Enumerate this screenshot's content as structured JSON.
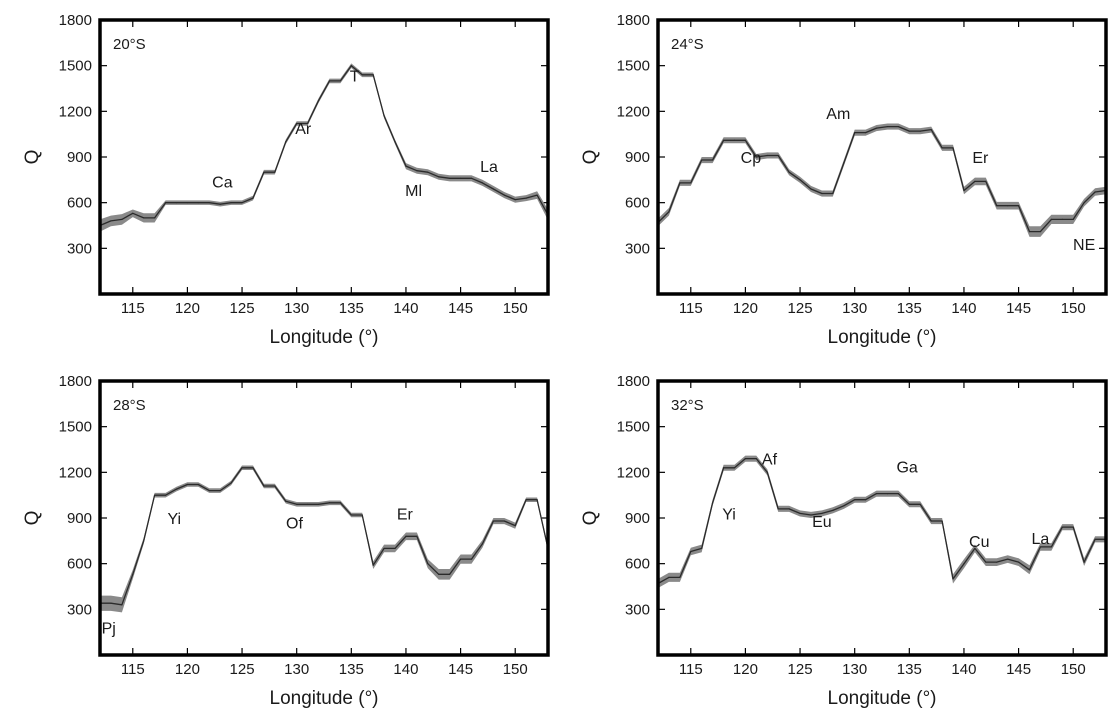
{
  "chart_data": [
    {
      "type": "line",
      "title": "20°S",
      "xlabel": "Longitude (°)",
      "ylabel": "Q",
      "xlim": [
        112,
        153
      ],
      "ylim": [
        0,
        1800
      ],
      "xticks": [
        115,
        120,
        125,
        130,
        135,
        140,
        145,
        150
      ],
      "yticks": [
        300,
        600,
        900,
        1200,
        1500,
        1800
      ],
      "series": [
        {
          "x": [
            112,
            113,
            114,
            115,
            116,
            117,
            118,
            119,
            120,
            121,
            122,
            123,
            124,
            125,
            126,
            127,
            128,
            129,
            130,
            131,
            132,
            133,
            134,
            135,
            136,
            137,
            138,
            139,
            140,
            141,
            142,
            143,
            144,
            145,
            146,
            147,
            148,
            149,
            150,
            151,
            152,
            153
          ],
          "y": [
            450,
            480,
            490,
            530,
            500,
            500,
            600,
            600,
            600,
            600,
            600,
            590,
            600,
            600,
            630,
            800,
            800,
            1000,
            1120,
            1120,
            1270,
            1400,
            1400,
            1500,
            1440,
            1440,
            1170,
            1000,
            840,
            810,
            800,
            770,
            760,
            760,
            760,
            730,
            690,
            650,
            620,
            630,
            650,
            520
          ],
          "uncertainty": [
            40,
            35,
            35,
            25,
            30,
            30,
            15,
            15,
            15,
            15,
            15,
            15,
            15,
            15,
            15,
            15,
            15,
            15,
            15,
            15,
            15,
            15,
            15,
            15,
            15,
            15,
            15,
            15,
            20,
            20,
            20,
            20,
            20,
            20,
            20,
            20,
            20,
            20,
            20,
            20,
            25,
            35
          ]
        }
      ],
      "annotations": [
        {
          "text": "Ca",
          "x": 123.2,
          "y": 700
        },
        {
          "text": "Ar",
          "x": 130.6,
          "y": 1050
        },
        {
          "text": "T",
          "x": 135.3,
          "y": 1395
        },
        {
          "text": "Ml",
          "x": 140.7,
          "y": 645
        },
        {
          "text": "La",
          "x": 147.6,
          "y": 800
        }
      ]
    },
    {
      "type": "line",
      "title": "24°S",
      "xlabel": "Longitude (°)",
      "ylabel": "Q",
      "xlim": [
        112,
        153
      ],
      "ylim": [
        0,
        1800
      ],
      "xticks": [
        115,
        120,
        125,
        130,
        135,
        140,
        145,
        150
      ],
      "yticks": [
        300,
        600,
        900,
        1200,
        1500,
        1800
      ],
      "series": [
        {
          "x": [
            112,
            113,
            114,
            115,
            116,
            117,
            118,
            119,
            120,
            121,
            122,
            123,
            124,
            125,
            126,
            127,
            128,
            129,
            130,
            131,
            132,
            133,
            134,
            135,
            136,
            137,
            138,
            139,
            140,
            141,
            142,
            143,
            144,
            145,
            146,
            147,
            148,
            149,
            150,
            151,
            152,
            153
          ],
          "y": [
            470,
            540,
            730,
            730,
            880,
            880,
            1010,
            1010,
            1010,
            900,
            910,
            910,
            800,
            750,
            690,
            660,
            660,
            860,
            1060,
            1060,
            1090,
            1100,
            1100,
            1070,
            1070,
            1080,
            960,
            960,
            680,
            740,
            740,
            580,
            580,
            580,
            410,
            410,
            490,
            490,
            490,
            600,
            670,
            680
          ],
          "uncertainty": [
            25,
            25,
            20,
            20,
            20,
            20,
            20,
            20,
            20,
            20,
            20,
            20,
            20,
            20,
            20,
            20,
            20,
            20,
            20,
            20,
            20,
            20,
            20,
            20,
            20,
            20,
            20,
            20,
            25,
            25,
            25,
            25,
            25,
            25,
            35,
            35,
            30,
            30,
            30,
            25,
            25,
            25
          ]
        }
      ],
      "annotations": [
        {
          "text": "Cp",
          "x": 120.5,
          "y": 860
        },
        {
          "text": "Am",
          "x": 128.5,
          "y": 1150
        },
        {
          "text": "Er",
          "x": 141.5,
          "y": 860
        },
        {
          "text": "NE",
          "x": 151.0,
          "y": 290
        }
      ]
    },
    {
      "type": "line",
      "title": "28°S",
      "xlabel": "Longitude (°)",
      "ylabel": "Q",
      "xlim": [
        112,
        153
      ],
      "ylim": [
        0,
        1800
      ],
      "xticks": [
        115,
        120,
        125,
        130,
        135,
        140,
        145,
        150
      ],
      "yticks": [
        300,
        600,
        900,
        1200,
        1500,
        1800
      ],
      "series": [
        {
          "x": [
            112,
            113,
            114,
            115,
            116,
            117,
            118,
            119,
            120,
            121,
            122,
            123,
            124,
            125,
            126,
            127,
            128,
            129,
            130,
            131,
            132,
            133,
            134,
            135,
            136,
            137,
            138,
            139,
            140,
            141,
            142,
            143,
            144,
            145,
            146,
            147,
            148,
            149,
            150,
            151,
            152,
            153
          ],
          "y": [
            340,
            340,
            330,
            530,
            750,
            1050,
            1050,
            1090,
            1120,
            1120,
            1080,
            1080,
            1130,
            1230,
            1230,
            1110,
            1110,
            1010,
            990,
            990,
            990,
            1000,
            1000,
            920,
            920,
            590,
            700,
            700,
            780,
            780,
            600,
            530,
            530,
            630,
            630,
            730,
            880,
            880,
            850,
            1020,
            1020,
            700
          ],
          "uncertainty": [
            50,
            50,
            50,
            30,
            20,
            15,
            15,
            15,
            15,
            15,
            15,
            15,
            15,
            15,
            15,
            15,
            15,
            15,
            15,
            15,
            15,
            15,
            15,
            15,
            15,
            25,
            25,
            25,
            25,
            25,
            30,
            35,
            35,
            30,
            30,
            25,
            20,
            20,
            20,
            15,
            15,
            20
          ]
        }
      ],
      "annotations": [
        {
          "text": "Pj",
          "x": 112.8,
          "y": 140
        },
        {
          "text": "Yi",
          "x": 118.8,
          "y": 860
        },
        {
          "text": "Of",
          "x": 129.8,
          "y": 830
        },
        {
          "text": "Er",
          "x": 139.9,
          "y": 890
        }
      ]
    },
    {
      "type": "line",
      "title": "32°S",
      "xlabel": "Longitude (°)",
      "ylabel": "Q",
      "xlim": [
        112,
        153
      ],
      "ylim": [
        0,
        1800
      ],
      "xticks": [
        115,
        120,
        125,
        130,
        135,
        140,
        145,
        150
      ],
      "yticks": [
        300,
        600,
        900,
        1200,
        1500,
        1800
      ],
      "series": [
        {
          "x": [
            112,
            113,
            114,
            115,
            116,
            117,
            118,
            119,
            120,
            121,
            122,
            123,
            124,
            125,
            126,
            127,
            128,
            129,
            130,
            131,
            132,
            133,
            134,
            135,
            136,
            137,
            138,
            139,
            140,
            141,
            142,
            143,
            144,
            145,
            146,
            147,
            148,
            149,
            150,
            151,
            152,
            153
          ],
          "y": [
            470,
            510,
            510,
            680,
            700,
            1000,
            1230,
            1230,
            1290,
            1290,
            1200,
            960,
            960,
            930,
            920,
            930,
            950,
            980,
            1020,
            1020,
            1060,
            1060,
            1060,
            990,
            990,
            880,
            880,
            500,
            600,
            700,
            610,
            610,
            630,
            610,
            560,
            710,
            710,
            840,
            840,
            610,
            760,
            760
          ],
          "uncertainty": [
            30,
            30,
            30,
            25,
            25,
            20,
            20,
            20,
            20,
            20,
            20,
            20,
            20,
            20,
            20,
            20,
            20,
            20,
            20,
            20,
            20,
            20,
            20,
            20,
            20,
            20,
            20,
            30,
            30,
            25,
            25,
            25,
            25,
            25,
            30,
            25,
            25,
            20,
            20,
            25,
            20,
            20
          ]
        }
      ],
      "annotations": [
        {
          "text": "Yi",
          "x": 118.5,
          "y": 890
        },
        {
          "text": "Af",
          "x": 122.2,
          "y": 1250
        },
        {
          "text": "Eu",
          "x": 127.0,
          "y": 840
        },
        {
          "text": "Ga",
          "x": 134.8,
          "y": 1200
        },
        {
          "text": "Cu",
          "x": 141.4,
          "y": 710
        },
        {
          "text": "La",
          "x": 147.0,
          "y": 730
        }
      ]
    }
  ]
}
